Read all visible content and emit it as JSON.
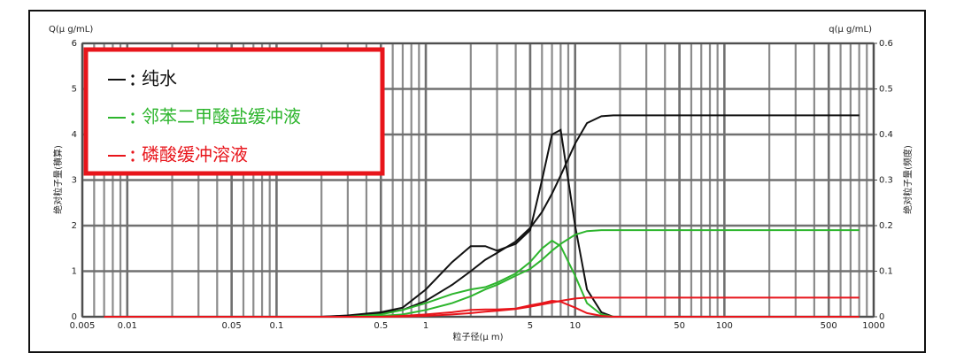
{
  "chart_data": {
    "type": "line",
    "y_label": "绝对粒子量(積算)",
    "y2_label": "绝对粒子量(频度)",
    "y_unit": "Q(μ g/mL)",
    "y2_unit": "q(μ g/mL)",
    "x_label": "粒子径(μ m)",
    "x_log": true,
    "grid": true,
    "xlim": [
      0.005,
      1000
    ],
    "xticks": [
      0.005,
      0.01,
      0.05,
      0.1,
      0.5,
      1,
      5,
      10,
      50,
      100,
      500,
      1000
    ],
    "ylim": [
      0,
      6
    ],
    "yticks": [
      0,
      1,
      2,
      3,
      4,
      5,
      6
    ],
    "y2lim": [
      0,
      0.6
    ],
    "y2ticks": [
      0,
      0.1,
      0.2,
      0.3,
      0.4,
      0.5,
      0.6
    ],
    "legend_position": "upper left",
    "legend_color": "#e8151b",
    "series": [
      {
        "name": "纯水",
        "color": "#111111",
        "x": [
          0.007,
          0.01,
          0.02,
          0.05,
          0.1,
          0.2,
          0.3,
          0.5,
          0.7,
          1,
          1.5,
          2,
          2.5,
          3,
          4,
          5,
          6,
          7,
          8,
          10,
          12,
          15,
          18,
          20,
          50,
          100,
          800
        ],
        "cumulative": [
          0,
          0,
          0,
          0,
          0,
          0,
          0.02,
          0.08,
          0.15,
          0.35,
          0.7,
          1.0,
          1.25,
          1.4,
          1.65,
          1.95,
          2.3,
          2.7,
          3.1,
          3.8,
          4.25,
          4.4,
          4.42,
          4.42,
          4.42,
          4.42,
          4.42
        ],
        "frequency": [
          0,
          0,
          0,
          0,
          0,
          0,
          0.003,
          0.01,
          0.02,
          0.06,
          0.12,
          0.155,
          0.155,
          0.145,
          0.16,
          0.19,
          0.3,
          0.4,
          0.41,
          0.2,
          0.06,
          0.01,
          0,
          0,
          0,
          0,
          0
        ]
      },
      {
        "name": "邻苯二甲酸盐缓冲液",
        "color": "#2db52d",
        "x": [
          0.007,
          0.01,
          0.02,
          0.05,
          0.1,
          0.2,
          0.3,
          0.5,
          0.7,
          1,
          1.5,
          2,
          2.5,
          3,
          4,
          5,
          6,
          7,
          8,
          10,
          12,
          15,
          18,
          20,
          50,
          100,
          800
        ],
        "cumulative": [
          0,
          0,
          0,
          0,
          0,
          0,
          0,
          0.02,
          0.05,
          0.15,
          0.3,
          0.45,
          0.6,
          0.7,
          0.9,
          1.05,
          1.25,
          1.45,
          1.6,
          1.8,
          1.88,
          1.9,
          1.9,
          1.9,
          1.9,
          1.9,
          1.9
        ],
        "frequency": [
          0,
          0,
          0,
          0,
          0,
          0,
          0,
          0.005,
          0.015,
          0.03,
          0.05,
          0.06,
          0.065,
          0.075,
          0.095,
          0.12,
          0.15,
          0.167,
          0.155,
          0.09,
          0.03,
          0.005,
          0,
          0,
          0,
          0,
          0
        ]
      },
      {
        "name": "磷酸缓冲溶液",
        "color": "#e8151b",
        "x": [
          0.007,
          0.01,
          0.02,
          0.05,
          0.1,
          0.2,
          0.3,
          0.5,
          0.7,
          1,
          1.5,
          2,
          2.5,
          3,
          4,
          5,
          6,
          7,
          8,
          10,
          12,
          15,
          18,
          20,
          50,
          100,
          800
        ],
        "cumulative": [
          0,
          0,
          0,
          0,
          0,
          0,
          0,
          0,
          0.005,
          0.02,
          0.05,
          0.08,
          0.11,
          0.13,
          0.17,
          0.22,
          0.27,
          0.31,
          0.35,
          0.4,
          0.42,
          0.42,
          0.42,
          0.42,
          0.42,
          0.42,
          0.42
        ],
        "frequency": [
          0,
          0,
          0,
          0,
          0,
          0,
          0,
          0,
          0.002,
          0.005,
          0.01,
          0.015,
          0.016,
          0.016,
          0.018,
          0.025,
          0.03,
          0.035,
          0.033,
          0.02,
          0.008,
          0.002,
          0,
          0,
          0,
          0,
          0
        ]
      }
    ]
  }
}
